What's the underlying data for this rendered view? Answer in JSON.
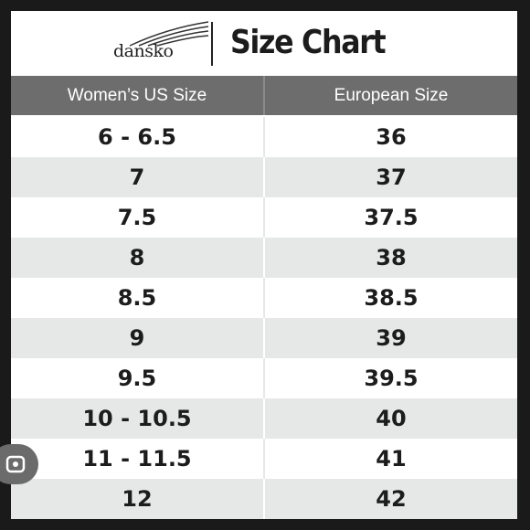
{
  "header": {
    "brand": "dansko",
    "title": "Size Chart"
  },
  "table": {
    "columns": [
      "Women’s US Size",
      "European Size"
    ],
    "rows": [
      [
        "6 - 6.5",
        "36"
      ],
      [
        "7",
        "37"
      ],
      [
        "7.5",
        "37.5"
      ],
      [
        "8",
        "38"
      ],
      [
        "8.5",
        "38.5"
      ],
      [
        "9",
        "39"
      ],
      [
        "9.5",
        "39.5"
      ],
      [
        "10 - 10.5",
        "40"
      ],
      [
        "11 - 11.5",
        "41"
      ],
      [
        "12",
        "42"
      ]
    ]
  }
}
